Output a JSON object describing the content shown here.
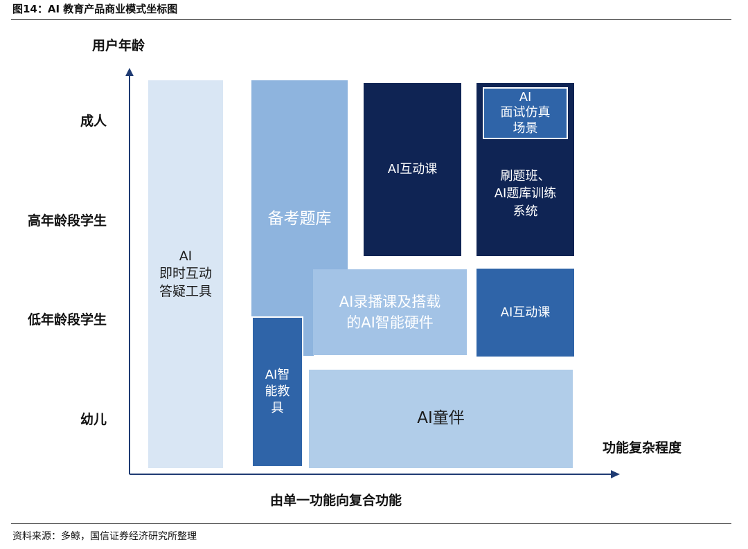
{
  "figure": {
    "title": "图14：AI 教育产品商业模式坐标图",
    "source": "资料来源：多鲸，国信证券经济研究所整理"
  },
  "axes": {
    "y_title": "用户年龄",
    "x_title": "功能复杂程度",
    "x_caption": "由单一功能向复合功能",
    "y_ticks": [
      "成人",
      "高年龄段学生",
      "低年龄段学生",
      "幼儿"
    ]
  },
  "blocks": {
    "qa_tool": "AI\n即时互动\n答疑工具",
    "exam_bank": "备考题库",
    "hw_device": "AI智\n能教\n具",
    "recorded": "AI录播课及搭载\n的AI智能硬件",
    "companion": "AI童伴",
    "live_adult": "AI互动课",
    "interview": "AI\n面试仿真\n场景",
    "drill": "刷题班、\nAI题库训练\n系统",
    "live_young": "AI互动课"
  },
  "colors": {
    "navy": "#0f2454",
    "mid_blue": "#2f64a8",
    "light_blue": "#8eb4de",
    "pale_blue": "#d9e6f4"
  }
}
